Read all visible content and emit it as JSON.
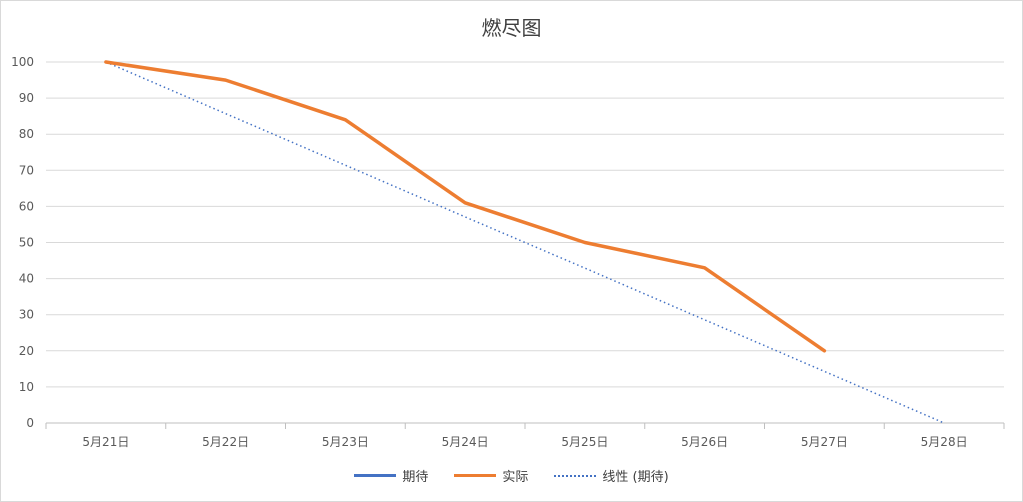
{
  "chart_data": {
    "type": "line",
    "title": "燃尽图",
    "categories": [
      "5月21日",
      "5月22日",
      "5月23日",
      "5月24日",
      "5月25日",
      "5月26日",
      "5月27日",
      "5月28日"
    ],
    "ylim": [
      0,
      100
    ],
    "yticks": [
      0,
      10,
      20,
      30,
      40,
      50,
      60,
      70,
      80,
      90,
      100
    ],
    "grid": true,
    "legend_position": "bottom",
    "series": [
      {
        "name": "期待",
        "color": "#4472C4",
        "style": "solid",
        "values": [
          100,
          85.7,
          71.4,
          57.1,
          42.9,
          28.6,
          14.3,
          0
        ],
        "visible": false
      },
      {
        "name": "实际",
        "color": "#ED7D31",
        "style": "solid",
        "values": [
          100,
          95,
          84,
          61,
          50,
          43,
          20,
          null
        ]
      },
      {
        "name": "线性 (期待)",
        "color": "#4472C4",
        "style": "dotted",
        "values": [
          100,
          85.7,
          71.4,
          57.1,
          42.9,
          28.6,
          14.3,
          0
        ]
      }
    ]
  }
}
